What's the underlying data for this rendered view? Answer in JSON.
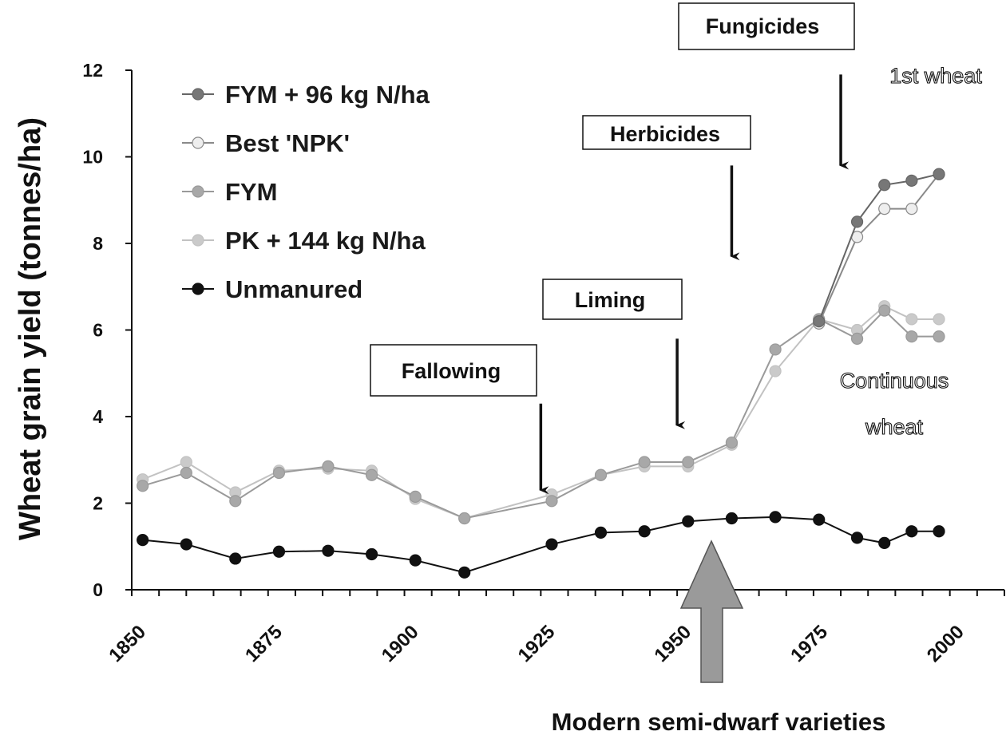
{
  "chart_data": {
    "type": "line",
    "ylabel": "Wheat grain yield (tonnes/ha)",
    "xlabel": "",
    "ylim": [
      0,
      12
    ],
    "xlim": [
      1850,
      2010
    ],
    "yticks": [
      "0",
      "2",
      "4",
      "6",
      "8",
      "10",
      "12"
    ],
    "xticks": [
      "1850",
      "1875",
      "1900",
      "1925",
      "1950",
      "1975",
      "2000"
    ],
    "grid": false,
    "legend_position": "top-left",
    "series": [
      {
        "name": "FYM + 96 kg N/ha",
        "color": "#666666",
        "marker_fill": "#777777",
        "x": [
          1976,
          1983,
          1988,
          1993,
          1998
        ],
        "y": [
          6.2,
          8.5,
          9.35,
          9.45,
          9.6
        ]
      },
      {
        "name": "Best 'NPK'",
        "color": "#8a8a8a",
        "marker_fill": "#eeeeee",
        "x": [
          1976,
          1983,
          1988,
          1993,
          1998
        ],
        "y": [
          6.15,
          8.15,
          8.8,
          8.8,
          9.6
        ]
      },
      {
        "name": "FYM",
        "color": "#9a9a9a",
        "marker_fill": "#a8a8a8",
        "x": [
          1852,
          1860,
          1869,
          1877,
          1886,
          1894,
          1902,
          1911,
          1927,
          1936,
          1944,
          1952,
          1960,
          1968,
          1976,
          1983,
          1988,
          1993,
          1998
        ],
        "y": [
          2.4,
          2.7,
          2.05,
          2.7,
          2.85,
          2.65,
          2.15,
          1.65,
          2.05,
          2.65,
          2.95,
          2.95,
          3.4,
          5.55,
          6.25,
          5.8,
          6.45,
          5.85,
          5.85
        ]
      },
      {
        "name": "PK + 144 kg N/ha",
        "color": "#c2c2c2",
        "marker_fill": "#cacaca",
        "x": [
          1852,
          1860,
          1869,
          1877,
          1886,
          1894,
          1902,
          1911,
          1927,
          1936,
          1944,
          1952,
          1960,
          1968,
          1976,
          1983,
          1988,
          1993,
          1998
        ],
        "y": [
          2.55,
          2.95,
          2.25,
          2.75,
          2.8,
          2.75,
          2.1,
          1.65,
          2.2,
          2.65,
          2.85,
          2.85,
          3.35,
          5.05,
          6.25,
          6.0,
          6.55,
          6.25,
          6.25
        ]
      },
      {
        "name": "Unmanured",
        "color": "#111111",
        "marker_fill": "#111111",
        "x": [
          1852,
          1860,
          1869,
          1877,
          1886,
          1894,
          1902,
          1911,
          1927,
          1936,
          1944,
          1952,
          1960,
          1968,
          1976,
          1983,
          1988,
          1993,
          1998
        ],
        "y": [
          1.15,
          1.05,
          0.72,
          0.88,
          0.9,
          0.82,
          0.68,
          0.4,
          1.05,
          1.32,
          1.35,
          1.58,
          1.65,
          1.68,
          1.62,
          1.2,
          1.08,
          1.35,
          1.35
        ]
      }
    ],
    "annotations": {
      "boxes": [
        {
          "label": "Fallowing",
          "arrow_x": 1925,
          "arrow_from_y": 4.3,
          "arrow_to_y": 2.3
        },
        {
          "label": "Liming",
          "arrow_x": 1950,
          "arrow_from_y": 5.8,
          "arrow_to_y": 3.8
        },
        {
          "label": "Herbicides",
          "arrow_x": 1960,
          "arrow_from_y": 9.8,
          "arrow_to_y": 7.7
        },
        {
          "label": "Fungicides",
          "arrow_x": 1980,
          "arrow_from_y": 11.9,
          "arrow_to_y": 9.8
        }
      ],
      "text_labels": [
        "1st wheat",
        "Continuous",
        "wheat"
      ],
      "bottom_caption": "Modern semi-dwarf varieties"
    }
  }
}
